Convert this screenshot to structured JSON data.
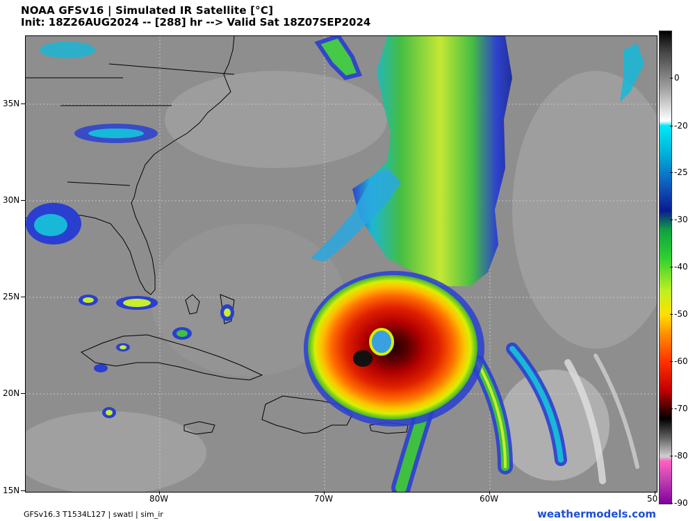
{
  "header": {
    "title_line1": "NOAA GFSv16 | Simulated IR Satellite [°C]",
    "title_line2": "Init: 18Z26AUG2024 -- [288] hr --> Valid Sat 18Z07SEP2024"
  },
  "map": {
    "lat_labels": [
      "35N",
      "30N",
      "25N",
      "20N",
      "15N"
    ],
    "lon_labels": [
      "80W",
      "70W",
      "60W",
      "50"
    ]
  },
  "colorbar": {
    "labels": [
      "0",
      "-20",
      "-25",
      "-30",
      "-40",
      "-50",
      "-60",
      "-70",
      "-80",
      "-90"
    ]
  },
  "footer": {
    "left": "GFSv16.3 T1534L127 | swatl | sim_ir",
    "right": "weathermodels.com"
  }
}
